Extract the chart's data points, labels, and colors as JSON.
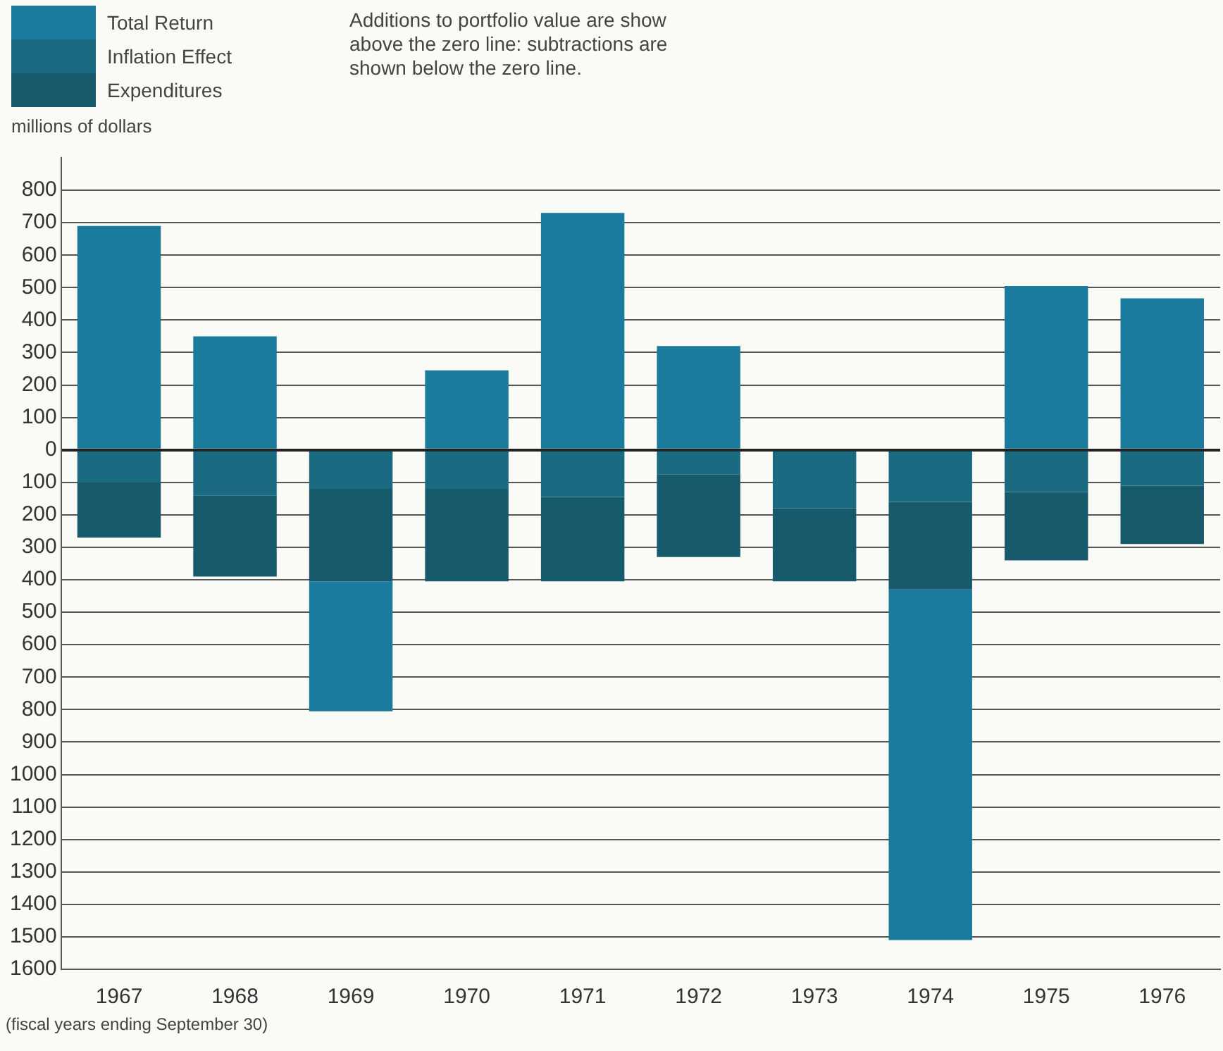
{
  "chart_data": {
    "type": "bar",
    "stacked": true,
    "ylabel": "millions of dollars",
    "annotations": [
      "Additions to portfolio value are show above the zero line: subtractions are shown below the zero line.",
      "(fiscal years ending September 30)"
    ],
    "categories": [
      "1967",
      "1968",
      "1969",
      "1970",
      "1971",
      "1972",
      "1973",
      "1974",
      "1975",
      "1976"
    ],
    "series": [
      {
        "name": "Inflation Effect",
        "color": "#1a6a82",
        "values": [
          -100,
          -140,
          -120,
          -120,
          -145,
          -75,
          -180,
          -160,
          -130,
          -110
        ]
      },
      {
        "name": "Expenditures",
        "color": "#175a6c",
        "values": [
          -170,
          -250,
          -285,
          -285,
          -260,
          -255,
          -225,
          -270,
          -210,
          -180
        ]
      },
      {
        "name": "Total Return",
        "color": "#1a7b9c",
        "values": [
          690,
          350,
          -400,
          245,
          730,
          320,
          0,
          -1080,
          505,
          467
        ]
      }
    ],
    "ylim": [
      -1600,
      900
    ],
    "yticks": [
      {
        "value": 800,
        "label": "800"
      },
      {
        "value": 700,
        "label": "700"
      },
      {
        "value": 600,
        "label": "600"
      },
      {
        "value": 500,
        "label": "500"
      },
      {
        "value": 400,
        "label": "400"
      },
      {
        "value": 300,
        "label": "300"
      },
      {
        "value": 200,
        "label": "200"
      },
      {
        "value": 100,
        "label": "100"
      },
      {
        "value": 0,
        "label": "0"
      },
      {
        "value": -100,
        "label": "100"
      },
      {
        "value": -200,
        "label": "200"
      },
      {
        "value": -300,
        "label": "300"
      },
      {
        "value": -400,
        "label": "400"
      },
      {
        "value": -500,
        "label": "500"
      },
      {
        "value": -600,
        "label": "600"
      },
      {
        "value": -700,
        "label": "700"
      },
      {
        "value": -800,
        "label": "800"
      },
      {
        "value": -900,
        "label": "900"
      },
      {
        "value": -1000,
        "label": "1000"
      },
      {
        "value": -1100,
        "label": "1100"
      },
      {
        "value": -1200,
        "label": "1200"
      },
      {
        "value": -1300,
        "label": "1300"
      },
      {
        "value": -1400,
        "label": "1400"
      },
      {
        "value": -1500,
        "label": "1500"
      },
      {
        "value": -1600,
        "label": "1600"
      }
    ],
    "grid": "y",
    "legend": "top left"
  }
}
